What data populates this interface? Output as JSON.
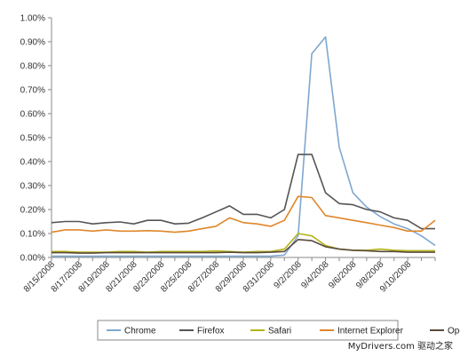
{
  "chart_data": {
    "type": "line",
    "title": "",
    "xlabel": "",
    "ylabel": "",
    "ylim": [
      0,
      1.0
    ],
    "y_ticks": [
      "0.00%",
      "0.10%",
      "0.20%",
      "0.30%",
      "0.40%",
      "0.50%",
      "0.60%",
      "0.70%",
      "0.80%",
      "0.90%",
      "1.00%"
    ],
    "x_tick_labels": [
      "8/15/2008",
      "8/17/2008",
      "8/19/2008",
      "8/21/2008",
      "8/23/2008",
      "8/25/2008",
      "8/27/2008",
      "8/29/2008",
      "8/31/2008",
      "9/2/2008",
      "9/4/2008",
      "9/6/2008",
      "9/8/2008",
      "9/10/2008"
    ],
    "x": [
      "8/15/2008",
      "8/16/2008",
      "8/17/2008",
      "8/18/2008",
      "8/19/2008",
      "8/20/2008",
      "8/21/2008",
      "8/22/2008",
      "8/23/2008",
      "8/24/2008",
      "8/25/2008",
      "8/26/2008",
      "8/27/2008",
      "8/28/2008",
      "8/29/2008",
      "8/30/2008",
      "8/31/2008",
      "9/1/2008",
      "9/2/2008",
      "9/3/2008",
      "9/4/2008",
      "9/5/2008",
      "9/6/2008",
      "9/7/2008",
      "9/8/2008",
      "9/9/2008",
      "9/10/2008",
      "9/11/2008",
      "9/12/2008"
    ],
    "legend_position": "bottom",
    "grid": false,
    "series": [
      {
        "name": "Chrome",
        "color": "#7fa7d0",
        "values": [
          0.005,
          0.005,
          0.005,
          0.005,
          0.005,
          0.005,
          0.005,
          0.005,
          0.005,
          0.005,
          0.005,
          0.005,
          0.005,
          0.005,
          0.005,
          0.005,
          0.005,
          0.01,
          0.09,
          0.85,
          0.92,
          0.46,
          0.27,
          0.21,
          0.17,
          0.14,
          0.12,
          0.09,
          0.05
        ]
      },
      {
        "name": "Firefox",
        "color": "#555555",
        "values": [
          0.145,
          0.15,
          0.15,
          0.14,
          0.145,
          0.148,
          0.14,
          0.155,
          0.155,
          0.14,
          0.143,
          0.165,
          0.19,
          0.215,
          0.18,
          0.18,
          0.165,
          0.2,
          0.43,
          0.43,
          0.27,
          0.225,
          0.22,
          0.2,
          0.19,
          0.165,
          0.155,
          0.12,
          0.12
        ]
      },
      {
        "name": "Safari",
        "color": "#b3b31a",
        "values": [
          0.025,
          0.025,
          0.022,
          0.022,
          0.022,
          0.025,
          0.025,
          0.022,
          0.025,
          0.025,
          0.025,
          0.025,
          0.027,
          0.025,
          0.022,
          0.025,
          0.025,
          0.035,
          0.1,
          0.09,
          0.05,
          0.035,
          0.03,
          0.03,
          0.035,
          0.03,
          0.028,
          0.028,
          0.028
        ]
      },
      {
        "name": "Internet Explorer",
        "color": "#e0862a",
        "values": [
          0.105,
          0.115,
          0.115,
          0.11,
          0.115,
          0.11,
          0.11,
          0.112,
          0.11,
          0.105,
          0.11,
          0.12,
          0.13,
          0.165,
          0.145,
          0.14,
          0.13,
          0.155,
          0.255,
          0.25,
          0.175,
          0.165,
          0.155,
          0.145,
          0.135,
          0.125,
          0.11,
          0.11,
          0.155
        ]
      },
      {
        "name": "Opera",
        "color": "#5a4a3a",
        "values": [
          0.02,
          0.02,
          0.018,
          0.018,
          0.02,
          0.02,
          0.02,
          0.02,
          0.02,
          0.02,
          0.02,
          0.02,
          0.02,
          0.022,
          0.02,
          0.02,
          0.022,
          0.025,
          0.075,
          0.07,
          0.045,
          0.035,
          0.03,
          0.028,
          0.025,
          0.025,
          0.022,
          0.022,
          0.022
        ]
      }
    ]
  },
  "watermark": "MyDrivers.com 驱动之家"
}
